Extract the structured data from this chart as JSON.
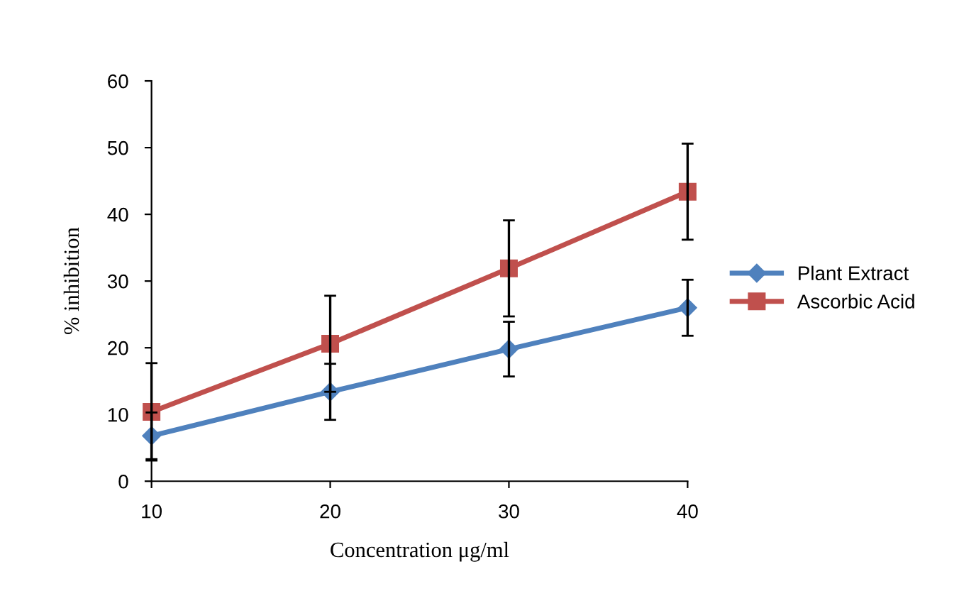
{
  "chart_data": {
    "type": "line",
    "xlabel": "Concentration μg/ml",
    "ylabel": "% inhibition",
    "x": [
      10,
      20,
      30,
      40
    ],
    "xlim": [
      10,
      40
    ],
    "xticks": [
      10,
      20,
      30,
      40
    ],
    "ylim": [
      0,
      60
    ],
    "yticks": [
      0,
      10,
      20,
      30,
      40,
      50,
      60
    ],
    "grid": false,
    "legend": "right",
    "series": [
      {
        "name": "Plant Extract",
        "color": "#4f81bd",
        "marker": "diamond",
        "values": [
          6.8,
          13.4,
          19.8,
          26.0
        ],
        "errors": [
          3.5,
          4.2,
          4.1,
          4.2
        ]
      },
      {
        "name": "Ascorbic Acid",
        "color": "#c0504d",
        "marker": "square",
        "values": [
          10.4,
          20.6,
          31.9,
          43.4
        ],
        "errors": [
          7.3,
          7.2,
          7.2,
          7.2
        ]
      }
    ]
  }
}
